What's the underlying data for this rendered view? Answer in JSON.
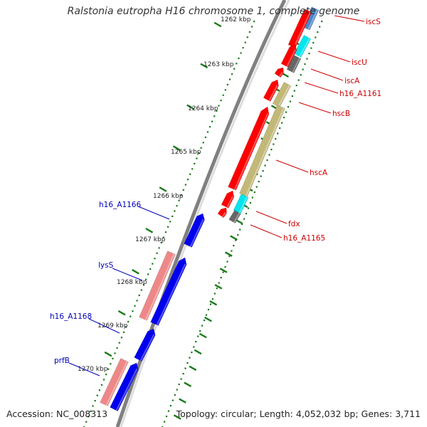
{
  "title": "Ralstonia eutropha H16 chromosome 1, complete genome",
  "accession": "Accession: NC_008313",
  "summary": "Topology: circular; Length: 4,052,032 bp; Genes: 3,711",
  "colors": {
    "backbone": "#808080",
    "tick": "#1a7a1a",
    "forward_label": "#cc0000",
    "reverse_label": "#0000bb",
    "red": "#ff0000",
    "cyan": "#00e5ee",
    "gray": "#666666",
    "olive": "#c2b878",
    "blue": "#0000ee",
    "pink": "#ee8888",
    "steel": "#4a86c8"
  },
  "scale_labels": [
    "1262 kbp",
    "1263 kbp",
    "1264 kbp",
    "1265 kbp",
    "1266 kbp",
    "1267 kbp",
    "1268 kbp",
    "1269 kbp",
    "1270 kbp"
  ],
  "forward_labels": [
    "iscS",
    "iscU",
    "iscA",
    "h16_A1161",
    "hscB",
    "hscA",
    "fdx",
    "h16_A1165"
  ],
  "reverse_labels": [
    "h16_A1166",
    "lysS",
    "h16_A1168",
    "prfB"
  ]
}
